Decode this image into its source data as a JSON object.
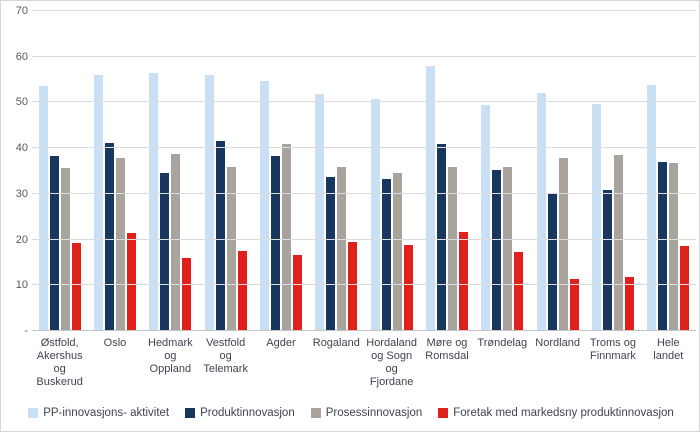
{
  "chart_data": {
    "type": "bar",
    "title": "",
    "xlabel": "",
    "ylabel": "",
    "ylim": [
      0,
      70
    ],
    "ytick_step": 10,
    "ytick_labels": [
      "-",
      "10",
      "20",
      "30",
      "40",
      "50",
      "60",
      "70"
    ],
    "grid": true,
    "legend_position": "bottom",
    "categories": [
      "Østfold,\nAkershus\nog\nBuskerud",
      "Oslo",
      "Hedmark\nog\nOppland",
      "Vestfold\nog\nTelemark",
      "Agder",
      "Rogaland",
      "Hordaland\nog Sogn og\nFjordane",
      "Møre og\nRomsdal",
      "Trøndelag",
      "Nordland",
      "Troms og\nFinnmark",
      "Hele\nlandet"
    ],
    "series": [
      {
        "name": "PP-innovasjons- aktivitet",
        "color": "#c9dff3",
        "values": [
          53.7,
          55.9,
          56.4,
          56.0,
          54.6,
          51.9,
          50.8,
          57.9,
          49.5,
          52.0,
          49.7,
          53.8
        ]
      },
      {
        "name": "Produktinnovasjon",
        "color": "#17375e",
        "values": [
          38.2,
          41.1,
          34.5,
          41.5,
          38.2,
          33.8,
          33.2,
          41.0,
          35.2,
          30.1,
          30.8,
          37.0
        ]
      },
      {
        "name": "Prosessinnovasjon",
        "color": "#a8a39c",
        "values": [
          35.6,
          37.9,
          38.8,
          35.9,
          40.9,
          35.9,
          34.6,
          35.9,
          35.8,
          37.9,
          38.4,
          36.8
        ]
      },
      {
        "name": "Foretak med markedsny produktinnovasjon",
        "color": "#e0201a",
        "values": [
          19.3,
          21.5,
          15.9,
          17.6,
          16.7,
          19.4,
          18.8,
          21.7,
          17.2,
          11.4,
          11.9,
          18.6
        ]
      }
    ],
    "colors": {
      "gridline": "#dcdcdc",
      "axis_line": "#c4c4c4",
      "tick_text": "#595959",
      "label_text": "#3f4450"
    }
  }
}
